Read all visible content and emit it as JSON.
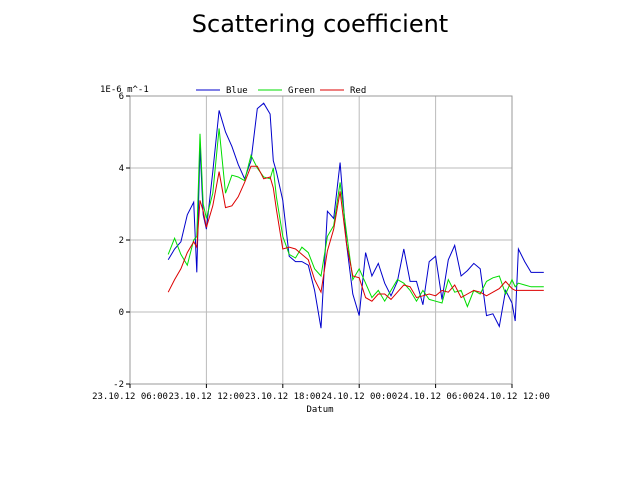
{
  "chart_data": {
    "type": "line",
    "title": "Scattering coefficient",
    "xlabel": "Datum",
    "ylabel": "1E-6 m^-1",
    "ylim": [
      -2,
      6
    ],
    "yticks": [
      "-2",
      "0",
      "2",
      "4",
      "6"
    ],
    "xlim": [
      "23.10.12 06:00",
      "24.10.12 12:00"
    ],
    "xticks": [
      "23.10.12 06:00",
      "23.10.12 12:00",
      "23.10.12 18:00",
      "24.10.12 00:00",
      "24.10.12 06:00",
      "24.10.12 12:00"
    ],
    "grid": true,
    "legend_position": "top",
    "series": [
      {
        "name": "Blue",
        "color": "#0000cc",
        "points": [
          [
            "23.10.12 09:00",
            1.45
          ],
          [
            "23.10.12 09:30",
            1.75
          ],
          [
            "23.10.12 10:00",
            1.95
          ],
          [
            "23.10.12 10:30",
            2.7
          ],
          [
            "23.10.12 11:00",
            3.05
          ],
          [
            "23.10.12 11:15",
            1.1
          ],
          [
            "23.10.12 11:30",
            4.6
          ],
          [
            "23.10.12 11:45",
            2.7
          ],
          [
            "23.10.12 12:00",
            2.3
          ],
          [
            "23.10.12 12:30",
            3.9
          ],
          [
            "23.10.12 13:00",
            5.6
          ],
          [
            "23.10.12 13:30",
            5.0
          ],
          [
            "23.10.12 14:00",
            4.6
          ],
          [
            "23.10.12 14:30",
            4.1
          ],
          [
            "23.10.12 15:00",
            3.7
          ],
          [
            "23.10.12 15:30",
            4.2
          ],
          [
            "23.10.12 16:00",
            5.65
          ],
          [
            "23.10.12 16:30",
            5.8
          ],
          [
            "23.10.12 17:00",
            5.5
          ],
          [
            "23.10.12 17:15",
            4.2
          ],
          [
            "23.10.12 17:30",
            3.9
          ],
          [
            "23.10.12 18:00",
            3.1
          ],
          [
            "23.10.12 18:30",
            1.55
          ],
          [
            "23.10.12 19:00",
            1.4
          ],
          [
            "23.10.12 19:30",
            1.4
          ],
          [
            "23.10.12 20:00",
            1.3
          ],
          [
            "23.10.12 20:30",
            0.6
          ],
          [
            "23.10.12 21:00",
            -0.45
          ],
          [
            "23.10.12 21:30",
            2.8
          ],
          [
            "23.10.12 22:00",
            2.6
          ],
          [
            "23.10.12 22:30",
            4.15
          ],
          [
            "23.10.12 23:00",
            1.9
          ],
          [
            "23.10.12 23:30",
            0.5
          ],
          [
            "24.10.12 00:00",
            -0.1
          ],
          [
            "24.10.12 00:30",
            1.65
          ],
          [
            "24.10.12 01:00",
            1.0
          ],
          [
            "24.10.12 01:30",
            1.35
          ],
          [
            "24.10.12 02:00",
            0.8
          ],
          [
            "24.10.12 02:30",
            0.45
          ],
          [
            "24.10.12 03:00",
            0.85
          ],
          [
            "24.10.12 03:30",
            1.75
          ],
          [
            "24.10.12 04:00",
            0.85
          ],
          [
            "24.10.12 04:30",
            0.85
          ],
          [
            "24.10.12 05:00",
            0.2
          ],
          [
            "24.10.12 05:30",
            1.4
          ],
          [
            "24.10.12 06:00",
            1.55
          ],
          [
            "24.10.12 06:30",
            0.35
          ],
          [
            "24.10.12 07:00",
            1.45
          ],
          [
            "24.10.12 07:30",
            1.85
          ],
          [
            "24.10.12 08:00",
            1.0
          ],
          [
            "24.10.12 08:30",
            1.15
          ],
          [
            "24.10.12 09:00",
            1.35
          ],
          [
            "24.10.12 09:30",
            1.2
          ],
          [
            "24.10.12 10:00",
            -0.1
          ],
          [
            "24.10.12 10:30",
            -0.05
          ],
          [
            "24.10.12 11:00",
            -0.4
          ],
          [
            "24.10.12 11:30",
            0.6
          ],
          [
            "24.10.12 12:00",
            0.25
          ],
          [
            "24.10.12 12:15",
            -0.25
          ],
          [
            "24.10.12 12:30",
            1.75
          ],
          [
            "24.10.12 13:00",
            1.4
          ],
          [
            "24.10.12 13:30",
            1.1
          ],
          [
            "24.10.12 14:00",
            1.1
          ],
          [
            "24.10.12 14:30",
            1.1
          ]
        ]
      },
      {
        "name": "Green",
        "color": "#00dd00",
        "points": [
          [
            "23.10.12 09:00",
            1.6
          ],
          [
            "23.10.12 09:30",
            2.05
          ],
          [
            "23.10.12 10:00",
            1.6
          ],
          [
            "23.10.12 10:30",
            1.3
          ],
          [
            "23.10.12 11:00",
            2.0
          ],
          [
            "23.10.12 11:15",
            2.1
          ],
          [
            "23.10.12 11:30",
            4.95
          ],
          [
            "23.10.12 11:45",
            3.0
          ],
          [
            "23.10.12 12:00",
            2.6
          ],
          [
            "23.10.12 12:30",
            3.3
          ],
          [
            "23.10.12 13:00",
            5.1
          ],
          [
            "23.10.12 13:30",
            3.3
          ],
          [
            "23.10.12 14:00",
            3.8
          ],
          [
            "23.10.12 14:30",
            3.75
          ],
          [
            "23.10.12 15:00",
            3.65
          ],
          [
            "23.10.12 15:30",
            4.35
          ],
          [
            "23.10.12 16:00",
            4.0
          ],
          [
            "23.10.12 16:30",
            3.75
          ],
          [
            "23.10.12 17:00",
            3.7
          ],
          [
            "23.10.12 17:15",
            4.0
          ],
          [
            "23.10.12 17:30",
            3.2
          ],
          [
            "23.10.12 18:00",
            2.1
          ],
          [
            "23.10.12 18:30",
            1.6
          ],
          [
            "23.10.12 19:00",
            1.5
          ],
          [
            "23.10.12 19:30",
            1.8
          ],
          [
            "23.10.12 20:00",
            1.65
          ],
          [
            "23.10.12 20:30",
            1.2
          ],
          [
            "23.10.12 21:00",
            1.0
          ],
          [
            "23.10.12 21:30",
            2.1
          ],
          [
            "23.10.12 22:00",
            2.4
          ],
          [
            "23.10.12 22:30",
            3.6
          ],
          [
            "23.10.12 23:00",
            2.2
          ],
          [
            "23.10.12 23:30",
            0.9
          ],
          [
            "24.10.12 00:00",
            1.2
          ],
          [
            "24.10.12 00:30",
            0.8
          ],
          [
            "24.10.12 01:00",
            0.4
          ],
          [
            "24.10.12 01:30",
            0.6
          ],
          [
            "24.10.12 02:00",
            0.3
          ],
          [
            "24.10.12 02:30",
            0.6
          ],
          [
            "24.10.12 03:00",
            0.9
          ],
          [
            "24.10.12 03:30",
            0.8
          ],
          [
            "24.10.12 04:00",
            0.6
          ],
          [
            "24.10.12 04:30",
            0.3
          ],
          [
            "24.10.12 05:00",
            0.6
          ],
          [
            "24.10.12 05:30",
            0.35
          ],
          [
            "24.10.12 06:00",
            0.3
          ],
          [
            "24.10.12 06:30",
            0.25
          ],
          [
            "24.10.12 07:00",
            0.9
          ],
          [
            "24.10.12 07:30",
            0.55
          ],
          [
            "24.10.12 08:00",
            0.6
          ],
          [
            "24.10.12 08:30",
            0.15
          ],
          [
            "24.10.12 09:00",
            0.6
          ],
          [
            "24.10.12 09:30",
            0.5
          ],
          [
            "24.10.12 10:00",
            0.85
          ],
          [
            "24.10.12 10:30",
            0.95
          ],
          [
            "24.10.12 11:00",
            1.0
          ],
          [
            "24.10.12 11:30",
            0.5
          ],
          [
            "24.10.12 12:00",
            0.9
          ],
          [
            "24.10.12 12:15",
            0.7
          ],
          [
            "24.10.12 12:30",
            0.8
          ],
          [
            "24.10.12 13:00",
            0.75
          ],
          [
            "24.10.12 13:30",
            0.7
          ],
          [
            "24.10.12 14:00",
            0.7
          ],
          [
            "24.10.12 14:30",
            0.7
          ]
        ]
      },
      {
        "name": "Red",
        "color": "#dd0000",
        "points": [
          [
            "23.10.12 09:00",
            0.55
          ],
          [
            "23.10.12 09:30",
            0.9
          ],
          [
            "23.10.12 10:00",
            1.2
          ],
          [
            "23.10.12 10:30",
            1.65
          ],
          [
            "23.10.12 11:00",
            1.95
          ],
          [
            "23.10.12 11:15",
            1.8
          ],
          [
            "23.10.12 11:30",
            3.1
          ],
          [
            "23.10.12 11:45",
            2.8
          ],
          [
            "23.10.12 12:00",
            2.35
          ],
          [
            "23.10.12 12:30",
            2.95
          ],
          [
            "23.10.12 13:00",
            3.9
          ],
          [
            "23.10.12 13:30",
            2.9
          ],
          [
            "23.10.12 14:00",
            2.95
          ],
          [
            "23.10.12 14:30",
            3.2
          ],
          [
            "23.10.12 15:00",
            3.6
          ],
          [
            "23.10.12 15:30",
            4.05
          ],
          [
            "23.10.12 16:00",
            4.05
          ],
          [
            "23.10.12 16:30",
            3.7
          ],
          [
            "23.10.12 17:00",
            3.75
          ],
          [
            "23.10.12 17:15",
            3.45
          ],
          [
            "23.10.12 17:30",
            2.85
          ],
          [
            "23.10.12 18:00",
            1.75
          ],
          [
            "23.10.12 18:30",
            1.8
          ],
          [
            "23.10.12 19:00",
            1.75
          ],
          [
            "23.10.12 19:30",
            1.6
          ],
          [
            "23.10.12 20:00",
            1.45
          ],
          [
            "23.10.12 20:30",
            0.9
          ],
          [
            "23.10.12 21:00",
            0.55
          ],
          [
            "23.10.12 21:30",
            1.7
          ],
          [
            "23.10.12 22:00",
            2.3
          ],
          [
            "23.10.12 22:30",
            3.35
          ],
          [
            "23.10.12 23:00",
            1.9
          ],
          [
            "23.10.12 23:30",
            1.0
          ],
          [
            "24.10.12 00:00",
            0.95
          ],
          [
            "24.10.12 00:30",
            0.4
          ],
          [
            "24.10.12 01:00",
            0.3
          ],
          [
            "24.10.12 01:30",
            0.5
          ],
          [
            "24.10.12 02:00",
            0.5
          ],
          [
            "24.10.12 02:30",
            0.35
          ],
          [
            "24.10.12 03:00",
            0.55
          ],
          [
            "24.10.12 03:30",
            0.75
          ],
          [
            "24.10.12 04:00",
            0.7
          ],
          [
            "24.10.12 04:30",
            0.4
          ],
          [
            "24.10.12 05:00",
            0.45
          ],
          [
            "24.10.12 05:30",
            0.5
          ],
          [
            "24.10.12 06:00",
            0.45
          ],
          [
            "24.10.12 06:30",
            0.6
          ],
          [
            "24.10.12 07:00",
            0.55
          ],
          [
            "24.10.12 07:30",
            0.75
          ],
          [
            "24.10.12 08:00",
            0.4
          ],
          [
            "24.10.12 08:30",
            0.5
          ],
          [
            "24.10.12 09:00",
            0.6
          ],
          [
            "24.10.12 09:30",
            0.55
          ],
          [
            "24.10.12 10:00",
            0.45
          ],
          [
            "24.10.12 10:30",
            0.55
          ],
          [
            "24.10.12 11:00",
            0.65
          ],
          [
            "24.10.12 11:30",
            0.85
          ],
          [
            "24.10.12 12:00",
            0.65
          ],
          [
            "24.10.12 12:15",
            0.6
          ],
          [
            "24.10.12 12:30",
            0.6
          ],
          [
            "24.10.12 13:00",
            0.6
          ],
          [
            "24.10.12 13:30",
            0.6
          ],
          [
            "24.10.12 14:00",
            0.6
          ],
          [
            "24.10.12 14:30",
            0.6
          ]
        ]
      }
    ]
  }
}
